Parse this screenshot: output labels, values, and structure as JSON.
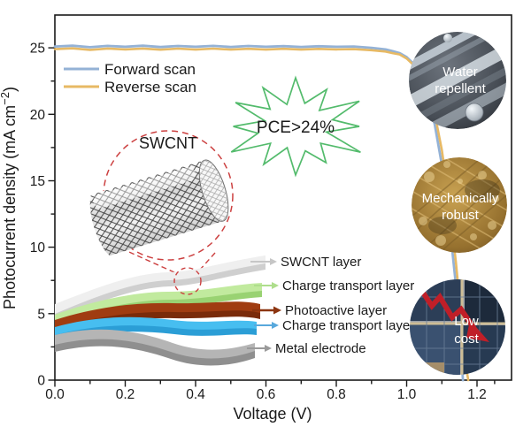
{
  "figure": {
    "axes": {
      "x": {
        "label": "Voltage (V)",
        "ticks": [
          "0.0",
          "0.2",
          "0.4",
          "0.6",
          "0.8",
          "1.0",
          "1.2"
        ],
        "min": 0,
        "max": 1.3
      },
      "y": {
        "label_main": "Photocurrent density (mA cm",
        "label_sup": "−2",
        "label_close": ")",
        "ticks": [
          "0",
          "5",
          "10",
          "15",
          "20",
          "25"
        ],
        "min": 0,
        "max": 27.5
      }
    },
    "legend": [
      {
        "label": "Forward scan",
        "color": "#94b2d6"
      },
      {
        "label": "Reverse scan",
        "color": "#e7b964"
      }
    ],
    "pce_badge": {
      "text": "PCE>24%",
      "color": "#53bb6c"
    },
    "inset": {
      "title": "SWCNT",
      "outline_color": "#cc4040"
    },
    "layers": [
      {
        "label": "SWCNT layer",
        "arrow_color": "#c6c6c6",
        "sheet_color": "#efefef",
        "sheet_edge": "#cfcfcf"
      },
      {
        "label": "Charge transport layer",
        "arrow_color": "#aede8c",
        "sheet_color": "#c1ea9e",
        "sheet_edge": "#99d272"
      },
      {
        "label": "Photoactive layer",
        "arrow_color": "#8c3510",
        "sheet_color": "#a03c11",
        "sheet_edge": "#7a2b0a"
      },
      {
        "label": "Charge transport layer",
        "arrow_color": "#58a8dc",
        "sheet_color": "#47bef0",
        "sheet_edge": "#2b9ed6"
      },
      {
        "label": "Metal electrode",
        "arrow_color": "#9a9a9a",
        "sheet_color": "#b5b5b5",
        "sheet_edge": "#8f8f8f"
      }
    ],
    "feature_badges": [
      {
        "line1": "Water",
        "line2": "repellent"
      },
      {
        "line1": "Mechanically",
        "line2": "robust"
      },
      {
        "line1": "Low",
        "line2": "cost"
      }
    ]
  },
  "chart_data": {
    "type": "line",
    "title": "",
    "xlabel": "Voltage (V)",
    "ylabel": "Photocurrent density (mA cm^-2)",
    "xlim": [
      0,
      1.3
    ],
    "ylim": [
      0,
      27.5
    ],
    "grid": false,
    "legend_position": "upper-left",
    "annotations": [
      "PCE>24%"
    ],
    "series": [
      {
        "name": "Forward scan",
        "color": "#94b2d6",
        "jsc_mA_cm2": 25.1,
        "voc_V": 1.16,
        "points": [
          [
            0.0,
            25.1
          ],
          [
            0.05,
            25.16
          ],
          [
            0.1,
            25.05
          ],
          [
            0.15,
            25.15
          ],
          [
            0.2,
            25.08
          ],
          [
            0.25,
            25.16
          ],
          [
            0.3,
            25.06
          ],
          [
            0.35,
            25.14
          ],
          [
            0.4,
            25.08
          ],
          [
            0.45,
            25.15
          ],
          [
            0.5,
            25.07
          ],
          [
            0.55,
            25.14
          ],
          [
            0.6,
            25.08
          ],
          [
            0.65,
            25.13
          ],
          [
            0.7,
            25.07
          ],
          [
            0.75,
            25.12
          ],
          [
            0.8,
            25.08
          ],
          [
            0.85,
            25.1
          ],
          [
            0.9,
            25.0
          ],
          [
            0.94,
            24.88
          ],
          [
            0.96,
            24.75
          ],
          [
            0.98,
            24.6
          ],
          [
            1.0,
            24.3
          ],
          [
            1.02,
            23.8
          ],
          [
            1.04,
            22.9
          ],
          [
            1.06,
            21.4
          ],
          [
            1.08,
            19.2
          ],
          [
            1.1,
            16.2
          ],
          [
            1.12,
            12.2
          ],
          [
            1.14,
            7.2
          ],
          [
            1.15,
            4.2
          ],
          [
            1.155,
            2.2
          ],
          [
            1.16,
            0.0
          ]
        ]
      },
      {
        "name": "Reverse scan",
        "color": "#e7b964",
        "jsc_mA_cm2": 24.9,
        "voc_V": 1.175,
        "points": [
          [
            0.0,
            24.9
          ],
          [
            0.05,
            24.96
          ],
          [
            0.1,
            24.85
          ],
          [
            0.15,
            24.95
          ],
          [
            0.2,
            24.88
          ],
          [
            0.25,
            24.95
          ],
          [
            0.3,
            24.86
          ],
          [
            0.35,
            24.94
          ],
          [
            0.4,
            24.87
          ],
          [
            0.45,
            24.94
          ],
          [
            0.5,
            24.87
          ],
          [
            0.55,
            24.93
          ],
          [
            0.6,
            24.87
          ],
          [
            0.65,
            24.93
          ],
          [
            0.7,
            24.87
          ],
          [
            0.75,
            24.92
          ],
          [
            0.8,
            24.88
          ],
          [
            0.85,
            24.9
          ],
          [
            0.9,
            24.82
          ],
          [
            0.94,
            24.72
          ],
          [
            0.96,
            24.6
          ],
          [
            0.98,
            24.5
          ],
          [
            1.0,
            24.2
          ],
          [
            1.02,
            23.7
          ],
          [
            1.04,
            23.0
          ],
          [
            1.06,
            21.8
          ],
          [
            1.08,
            20.0
          ],
          [
            1.1,
            17.3
          ],
          [
            1.12,
            13.6
          ],
          [
            1.14,
            8.9
          ],
          [
            1.16,
            3.4
          ],
          [
            1.17,
            0.8
          ],
          [
            1.175,
            0.0
          ]
        ]
      }
    ]
  }
}
